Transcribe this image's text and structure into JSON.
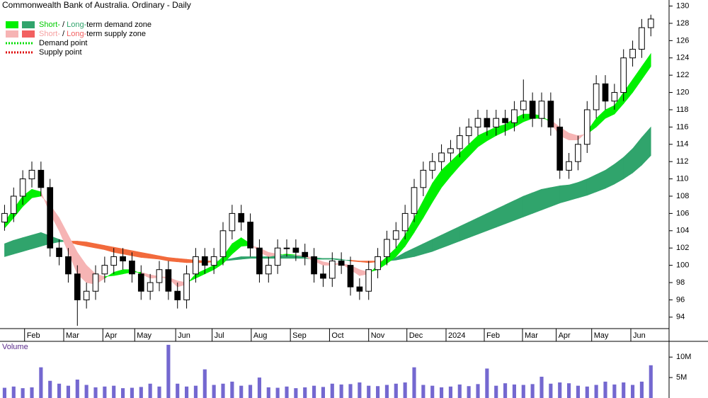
{
  "chart_data": {
    "type": "candlestick",
    "title": "Commonwealth Bank of Australia. Ordinary - Daily",
    "x": [
      0,
      1,
      2,
      3,
      4,
      5,
      6,
      7,
      8,
      9,
      10,
      11,
      12,
      13,
      14,
      15,
      16,
      17,
      18,
      19,
      20,
      21,
      22,
      23,
      24,
      25,
      26,
      27,
      28,
      29,
      30,
      31,
      32,
      33,
      34,
      35,
      36,
      37,
      38,
      39,
      40,
      41,
      42,
      43,
      44,
      45,
      46,
      47,
      48,
      49,
      50,
      51,
      52,
      53,
      54,
      55,
      56,
      57,
      58,
      59,
      60,
      61,
      62,
      63,
      64,
      65,
      66,
      67,
      68,
      69,
      70,
      71
    ],
    "open": [
      105,
      106,
      108,
      110,
      111,
      109,
      102,
      101,
      99,
      96,
      97,
      99,
      100,
      101,
      100.5,
      99,
      97,
      98,
      99.5,
      97,
      96,
      99,
      101,
      100,
      101,
      104,
      106,
      105,
      102,
      99,
      100,
      102,
      102,
      101.5,
      101,
      99,
      98.5,
      100.5,
      100,
      97.5,
      97,
      99.5,
      101,
      103,
      104,
      106,
      109,
      111,
      112,
      113,
      113.5,
      115,
      116,
      117,
      116,
      117,
      116.5,
      118,
      119,
      117,
      119,
      116,
      111,
      112,
      114,
      118,
      121,
      119,
      120,
      124,
      125,
      127.5
    ],
    "high": [
      107,
      109,
      111,
      112,
      112,
      110,
      103,
      102,
      100,
      98,
      100,
      101,
      102,
      102,
      101.5,
      100,
      99,
      100.5,
      100.5,
      98,
      100,
      102,
      102,
      102,
      105,
      107,
      107,
      106,
      103,
      101,
      103,
      103,
      103,
      102.5,
      102,
      100,
      101.5,
      101.5,
      101,
      98.5,
      100.5,
      102,
      104,
      105,
      107,
      110,
      112,
      113,
      114,
      114.5,
      116,
      117,
      118,
      118,
      118,
      118,
      119,
      121.5,
      120,
      120,
      120,
      117,
      113,
      115,
      119,
      122,
      122,
      121,
      125,
      126,
      128.5,
      129
    ],
    "low": [
      104,
      105,
      107,
      109,
      108,
      101,
      100,
      98,
      93,
      95,
      96,
      98,
      99,
      99.5,
      98,
      96,
      96,
      97,
      96,
      95,
      95,
      98,
      99,
      99,
      100,
      103,
      104,
      101,
      98,
      98,
      99,
      101,
      100.5,
      100,
      98,
      97.5,
      97.5,
      99,
      96.5,
      96,
      96,
      98.5,
      100,
      102,
      103,
      105,
      108,
      110,
      111,
      112,
      112.5,
      114,
      115,
      115,
      115,
      115,
      115.5,
      117,
      116,
      116,
      115,
      110,
      110,
      111,
      113,
      117,
      118,
      118,
      119,
      123,
      124,
      126.5
    ],
    "close": [
      106,
      108,
      110,
      111,
      109,
      102,
      101,
      99,
      96,
      97,
      99,
      100,
      101,
      100.5,
      99,
      97,
      98,
      99.5,
      97,
      96,
      99,
      101,
      100,
      101,
      104,
      106,
      105,
      102,
      99,
      100,
      102,
      102,
      101.5,
      101,
      99,
      98.5,
      100.5,
      100,
      97.5,
      97,
      99.5,
      101,
      103,
      104,
      106,
      109,
      111,
      112,
      113,
      113.5,
      115,
      116,
      117,
      116,
      117,
      116.5,
      118,
      119,
      117,
      119,
      116,
      111,
      112,
      114,
      118,
      121,
      119,
      120,
      124,
      125,
      127.5,
      128.5
    ],
    "up_color": "#ffffff",
    "down_color": "#000000",
    "xlim": [
      -0.5,
      73
    ],
    "xticks": [
      {
        "value": 2.2,
        "label": "Feb"
      },
      {
        "value": 6.5,
        "label": "Mar"
      },
      {
        "value": 10.8,
        "label": "Apr"
      },
      {
        "value": 14.3,
        "label": "May"
      },
      {
        "value": 18.8,
        "label": "Jun"
      },
      {
        "value": 22.8,
        "label": "Jul"
      },
      {
        "value": 27.1,
        "label": "Aug"
      },
      {
        "value": 31.4,
        "label": "Sep"
      },
      {
        "value": 35.7,
        "label": "Oct"
      },
      {
        "value": 40.0,
        "label": "Nov"
      },
      {
        "value": 44.2,
        "label": "Dec"
      },
      {
        "value": 48.5,
        "label": "2024"
      },
      {
        "value": 52.7,
        "label": "Feb"
      },
      {
        "value": 56.9,
        "label": "Mar"
      },
      {
        "value": 60.6,
        "label": "Apr"
      },
      {
        "value": 64.5,
        "label": "May"
      },
      {
        "value": 68.8,
        "label": "Jun"
      }
    ],
    "ylim": [
      91.2,
      130.7
    ],
    "yticks": [
      94,
      96,
      98,
      100,
      102,
      104,
      106,
      108,
      110,
      112,
      114,
      116,
      118,
      120,
      122,
      124,
      126,
      128,
      130
    ],
    "bands": [
      {
        "fast": [
          102.5,
          102.9,
          103.2,
          103.5,
          103.8,
          103.4,
          103,
          102.7,
          102.4,
          102.2,
          102,
          101.8,
          101.5,
          101.3,
          101.1,
          100.9,
          100.8,
          100.7,
          100.5,
          100.4,
          100.3,
          100.3,
          100.3,
          100.4,
          100.6,
          100.8,
          101,
          101,
          101,
          101,
          101.1,
          101.2,
          101.1,
          101,
          100.9,
          100.8,
          100.8,
          100.7,
          100.5,
          100.4,
          100.3,
          100.4,
          100.5,
          100.9,
          101.5,
          102,
          102.5,
          103,
          103.5,
          104,
          104.5,
          105,
          105.5,
          106,
          106.5,
          107,
          107.5,
          108,
          108.4,
          108.8,
          109,
          109.2,
          109.3,
          109.6,
          110,
          110.5,
          111,
          111.7,
          112.5,
          113.5,
          114.8,
          116
        ],
        "slow": [
          101,
          101.3,
          101.6,
          101.9,
          102.2,
          102.5,
          102.7,
          102.8,
          102.8,
          102.7,
          102.5,
          102.3,
          102.1,
          101.9,
          101.7,
          101.5,
          101.3,
          101.1,
          100.9,
          100.8,
          100.7,
          100.6,
          100.5,
          100.5,
          100.5,
          100.6,
          100.7,
          100.8,
          100.8,
          100.8,
          100.8,
          100.8,
          100.8,
          100.8,
          100.7,
          100.7,
          100.7,
          100.6,
          100.6,
          100.5,
          100.5,
          100.5,
          100.5,
          100.6,
          100.8,
          101,
          101.3,
          101.6,
          102,
          102.4,
          102.8,
          103.2,
          103.6,
          104,
          104.4,
          104.8,
          105.2,
          105.6,
          106,
          106.4,
          106.8,
          107.2,
          107.5,
          107.8,
          108.1,
          108.5,
          108.9,
          109.4,
          110,
          110.7,
          111.6,
          112.7
        ],
        "demand_color": "#30a46c",
        "supply_color": "#f26a3c"
      },
      {
        "fast": [
          105,
          106.5,
          108,
          108.8,
          108.5,
          106,
          104,
          101.5,
          99,
          98,
          97.8,
          98.5,
          99.2,
          99.5,
          99.5,
          99,
          98.5,
          98.6,
          98.5,
          97.5,
          97.8,
          99,
          99.5,
          100,
          101,
          102.5,
          103.2,
          102.5,
          101.5,
          101,
          101.2,
          101.3,
          101.2,
          101,
          100.5,
          100,
          100,
          100.2,
          99.5,
          98.8,
          99,
          100,
          101,
          102,
          103.5,
          105.5,
          107.5,
          109.5,
          111,
          112,
          113,
          114,
          115,
          115.5,
          116,
          116.3,
          117,
          117.5,
          117.5,
          117.3,
          116.5,
          115,
          114.5,
          114.5,
          115.5,
          117,
          118,
          118.5,
          120,
          121.5,
          123,
          124.5
        ],
        "slow": [
          104.3,
          105.5,
          106.8,
          107.8,
          108,
          107,
          105.5,
          103.5,
          101.5,
          100,
          99,
          98.7,
          98.8,
          99,
          99.2,
          99.2,
          98.9,
          98.7,
          98.6,
          98.2,
          98,
          98.5,
          99,
          99.5,
          100.2,
          101.3,
          102.2,
          102.3,
          102,
          101.5,
          101.3,
          101.2,
          101.2,
          101.1,
          100.8,
          100.4,
          100.2,
          100.2,
          100,
          99.5,
          99.2,
          99.5,
          100.2,
          101,
          102.2,
          103.8,
          105.5,
          107.3,
          109,
          110.3,
          111.5,
          112.6,
          113.7,
          114.4,
          115,
          115.5,
          116,
          116.6,
          117,
          117,
          116.8,
          116,
          115.3,
          115,
          115.2,
          116,
          117,
          117.5,
          118.7,
          120,
          121.5,
          123
        ],
        "demand_color": "#00f000",
        "supply_color": "#f6b4b4"
      }
    ],
    "legend": [
      {
        "swatches": [
          "#00f000",
          "#30a46c"
        ],
        "parts": [
          {
            "text": "Short-",
            "color": "#00cc00"
          },
          {
            "text": " / "
          },
          {
            "text": "Long-",
            "color": "#30a46c"
          },
          {
            "text": "term demand zone"
          }
        ]
      },
      {
        "swatches": [
          "#f6b4b4",
          "#f26060"
        ],
        "parts": [
          {
            "text": "Short-",
            "color": "#f6a0a0"
          },
          {
            "text": " / "
          },
          {
            "text": "Long-",
            "color": "#f26060"
          },
          {
            "text": "term supply zone"
          }
        ]
      },
      {
        "line_color": "#00dd00",
        "parts": [
          {
            "text": "Demand point"
          }
        ]
      },
      {
        "line_color": "#dd0000",
        "parts": [
          {
            "text": "Supply point"
          }
        ]
      }
    ],
    "volume": {
      "label": "Volume",
      "color": "#7468d0",
      "values": [
        2500000,
        2800000,
        2400000,
        2600000,
        7500000,
        4200000,
        3500000,
        3000000,
        4500000,
        3200000,
        2600000,
        2800000,
        3000000,
        2400000,
        2500000,
        2700000,
        3500000,
        2800000,
        13000000,
        3500000,
        2800000,
        3000000,
        7000000,
        3200000,
        3500000,
        4000000,
        3000000,
        3200000,
        5000000,
        2600000,
        2500000,
        2800000,
        2400000,
        2600000,
        3000000,
        2700000,
        3500000,
        3300000,
        3400000,
        3800000,
        3000000,
        2900000,
        3200000,
        3500000,
        3800000,
        7500000,
        3200000,
        3000000,
        2600000,
        2800000,
        3300000,
        2900000,
        3400000,
        7200000,
        3000000,
        3600000,
        3300000,
        3200000,
        3400000,
        5200000,
        3500000,
        3800000,
        3600000,
        3000000,
        2800000,
        3200000,
        4000000,
        3300000,
        3800000,
        3200000,
        4000000,
        8000000
      ],
      "ylim": [
        0,
        13500000
      ],
      "yticks": [
        {
          "value": 5000000,
          "label": "5M"
        },
        {
          "value": 10000000,
          "label": "10M"
        }
      ]
    }
  }
}
